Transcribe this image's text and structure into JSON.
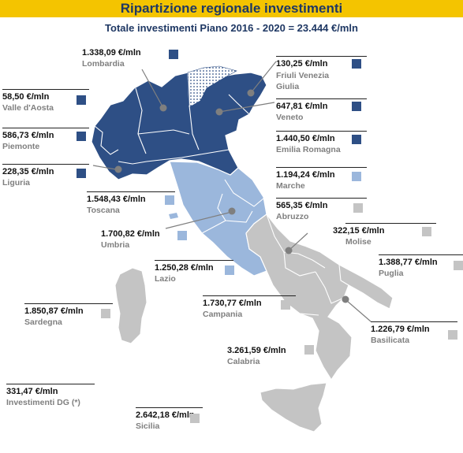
{
  "title": "Ripartizione regionale investimenti",
  "subtitle": "Totale investimenti Piano 2016 - 2020 = 23.444 €/mln",
  "colors": {
    "dark": "#2e4f85",
    "light": "#9bb7dc",
    "gray": "#c4c4c4",
    "title_bg": "#f4c400"
  },
  "regions": [
    {
      "key": "lombardia",
      "name": "Lombardia",
      "value": "1.338,09 €/mln",
      "color": "dark"
    },
    {
      "key": "friuli",
      "name": "Friuli Venezia Giulia",
      "value": "130,25 €/mln",
      "color": "dark"
    },
    {
      "key": "valle",
      "name": "Valle d'Aosta",
      "value": "58,50 €/mln",
      "color": "dark"
    },
    {
      "key": "veneto",
      "name": "Veneto",
      "value": "647,81 €/mln",
      "color": "dark"
    },
    {
      "key": "piemonte",
      "name": "Piemonte",
      "value": "586,73 €/mln",
      "color": "dark"
    },
    {
      "key": "emilia",
      "name": "Emilia Romagna",
      "value": "1.440,50 €/mln",
      "color": "dark"
    },
    {
      "key": "liguria",
      "name": "Liguria",
      "value": "228,35 €/mln",
      "color": "dark"
    },
    {
      "key": "marche",
      "name": "Marche",
      "value": "1.194,24 €/mln",
      "color": "light"
    },
    {
      "key": "toscana",
      "name": "Toscana",
      "value": "1.548,43 €/mln",
      "color": "light"
    },
    {
      "key": "abruzzo",
      "name": "Abruzzo",
      "value": "565,35 €/mln",
      "color": "gray"
    },
    {
      "key": "molise",
      "name": "Molise",
      "value": "322,15 €/mln",
      "color": "gray"
    },
    {
      "key": "umbria",
      "name": "Umbria",
      "value": "1.700,82 €/mln",
      "color": "light"
    },
    {
      "key": "puglia",
      "name": "Puglia",
      "value": "1.388,77 €/mln",
      "color": "gray"
    },
    {
      "key": "lazio",
      "name": "Lazio",
      "value": "1.250,28 €/mln",
      "color": "light"
    },
    {
      "key": "sardegna",
      "name": "Sardegna",
      "value": "1.850,87 €/mln",
      "color": "gray"
    },
    {
      "key": "campania",
      "name": "Campania",
      "value": "1.730,77 €/mln",
      "color": "gray"
    },
    {
      "key": "basilicata",
      "name": "Basilicata",
      "value": "1.226,79 €/mln",
      "color": "gray"
    },
    {
      "key": "calabria",
      "name": "Calabria",
      "value": "3.261,59 €/mln",
      "color": "gray"
    },
    {
      "key": "sicilia",
      "name": "Sicilia",
      "value": "2.642,18 €/mln",
      "color": "gray"
    }
  ],
  "dg": {
    "value": "331,47 €/mln",
    "name": "Investimenti DG (*)"
  }
}
